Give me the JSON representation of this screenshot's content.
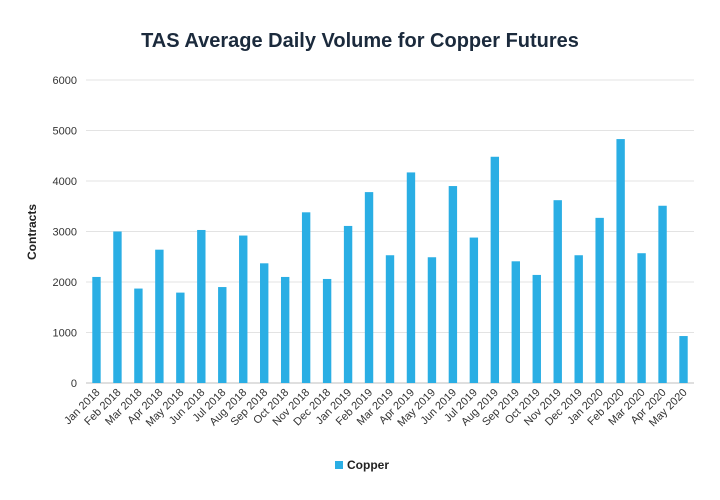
{
  "chart_data": {
    "type": "bar",
    "title": "TAS Average Daily Volume for Copper Futures",
    "xlabel": "",
    "ylabel": "Contracts",
    "ylim": [
      0,
      6000
    ],
    "yticks": [
      0,
      1000,
      2000,
      3000,
      4000,
      5000,
      6000
    ],
    "grid": true,
    "legend_position": "bottom-center",
    "categories": [
      "Jan 2018",
      "Feb 2018",
      "Mar 2018",
      "Apr 2018",
      "May 2018",
      "Jun 2018",
      "Jul 2018",
      "Aug 2018",
      "Sep 2018",
      "Oct 2018",
      "Nov 2018",
      "Dec 2018",
      "Jan 2019",
      "Feb 2019",
      "Mar 2019",
      "Apr 2019",
      "May 2019",
      "Jun 2019",
      "Jul 2019",
      "Aug 2019",
      "Sep 2019",
      "Oct 2019",
      "Nov 2019",
      "Dec 2019",
      "Jan 2020",
      "Feb 2020",
      "Mar 2020",
      "Apr 2020",
      "May 2020"
    ],
    "series": [
      {
        "name": "Copper",
        "color": "#2aaee4",
        "values": [
          2100,
          3000,
          1870,
          2640,
          1790,
          3030,
          1900,
          2920,
          2370,
          2100,
          3380,
          2060,
          3110,
          3780,
          2530,
          4170,
          2490,
          3900,
          2880,
          4480,
          2410,
          2140,
          3620,
          2530,
          3270,
          4830,
          2570,
          3510,
          930
        ]
      }
    ]
  }
}
